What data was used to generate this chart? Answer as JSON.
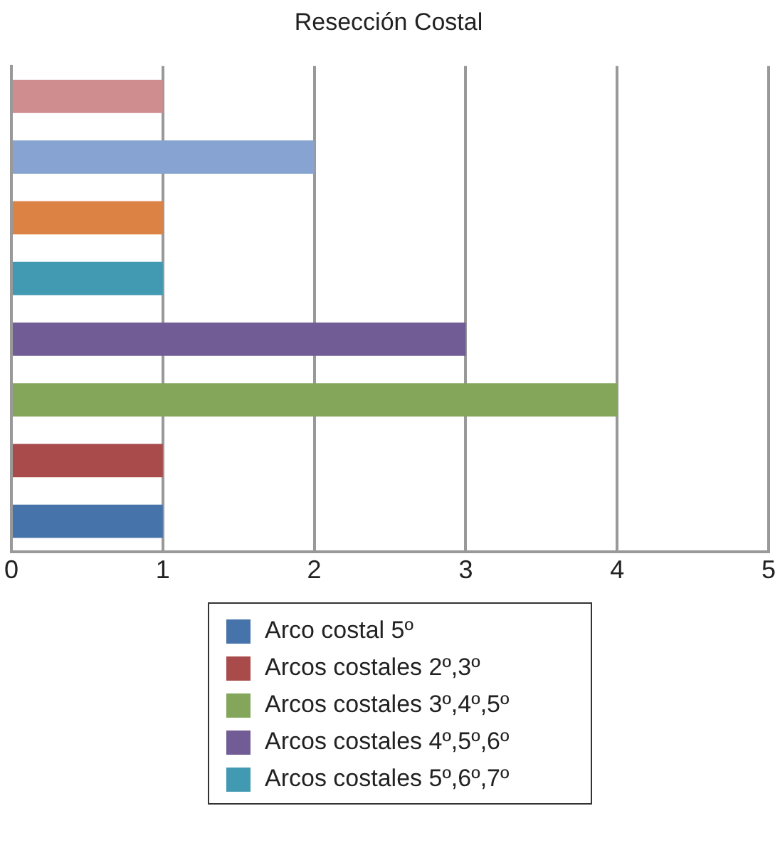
{
  "chart_data": {
    "type": "bar",
    "orientation": "horizontal",
    "title": "Resección Costal",
    "categories": [
      null,
      null,
      null,
      null,
      null,
      null,
      null,
      null
    ],
    "series": [
      {
        "name": "Arco costal 5º",
        "color": "#4673aa",
        "values": [
          null,
          null,
          null,
          null,
          null,
          null,
          null,
          1
        ]
      },
      {
        "name": "Arcos costales 2º,3º",
        "color": "#a84b4a",
        "values": [
          null,
          null,
          null,
          null,
          null,
          null,
          1,
          null
        ]
      },
      {
        "name": "Arcos costales 3º,4º,5º",
        "color": "#83a65b",
        "values": [
          null,
          null,
          null,
          null,
          null,
          4,
          null,
          null
        ]
      },
      {
        "name": "Arcos costales 4º,5º,6º",
        "color": "#715c96",
        "values": [
          null,
          null,
          null,
          null,
          3,
          null,
          null,
          null
        ]
      },
      {
        "name": "Arcos costales 5º,6º,7º",
        "color": "#4199b2",
        "values": [
          null,
          null,
          null,
          1,
          null,
          null,
          null,
          null
        ]
      },
      {
        "color": "#dc8244",
        "values": [
          null,
          null,
          1,
          null,
          null,
          null,
          null,
          null
        ]
      },
      {
        "color": "#87a3d1",
        "values": [
          null,
          2,
          null,
          null,
          null,
          null,
          null,
          null
        ]
      },
      {
        "color": "#d08d8f",
        "values": [
          1,
          null,
          null,
          null,
          null,
          null,
          null,
          null
        ]
      }
    ],
    "xlim": [
      0,
      5
    ],
    "xticks": [
      0,
      1,
      2,
      3,
      4,
      5
    ],
    "grid": "x",
    "legend": "bottom"
  }
}
